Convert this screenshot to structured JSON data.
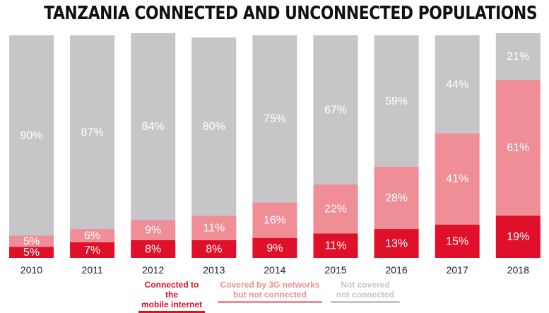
{
  "chart_data": {
    "type": "bar",
    "stacked": true,
    "title": "TANZANIA CONNECTED AND UNCONNECTED POPULATIONS",
    "categories": [
      "2010",
      "2011",
      "2012",
      "2013",
      "2014",
      "2015",
      "2016",
      "2017",
      "2018"
    ],
    "ylim": [
      0,
      100
    ],
    "grid": false,
    "legend_placement": "bottom",
    "series": [
      {
        "name": "Connected to the mobile internet",
        "color": "#e1102a",
        "text_color": "#ffffff",
        "values": [
          5,
          7,
          8,
          8,
          9,
          11,
          13,
          15,
          19
        ],
        "labels": [
          "5%",
          "7%",
          "8%",
          "8%",
          "9%",
          "11%",
          "13%",
          "15%",
          "19%"
        ]
      },
      {
        "name": "Covered by 3G networks but not connected",
        "color": "#ef8e97",
        "text_color": "#ffffff",
        "values": [
          5,
          6,
          9,
          11,
          16,
          22,
          28,
          41,
          61
        ],
        "labels": [
          "5%",
          "6%",
          "9%",
          "11%",
          "16%",
          "22%",
          "28%",
          "41%",
          "61%"
        ]
      },
      {
        "name": "Not covered not connected",
        "color": "#c6c6c8",
        "text_color": "#ffffff",
        "values": [
          90,
          87,
          84,
          80,
          75,
          67,
          59,
          44,
          21
        ],
        "labels": [
          "90%",
          "87%",
          "84%",
          "80%",
          "75%",
          "67%",
          "59%",
          "44%",
          "21%"
        ]
      }
    ]
  },
  "legend": [
    {
      "line1": "Connected to the",
      "line2": "mobile internet",
      "color": "#e1102a"
    },
    {
      "line1": "Covered by 3G networks",
      "line2": "but not connected",
      "color": "#ef8e97"
    },
    {
      "line1": "Not covered",
      "line2": "not connected",
      "color": "#c6c6c8"
    }
  ]
}
